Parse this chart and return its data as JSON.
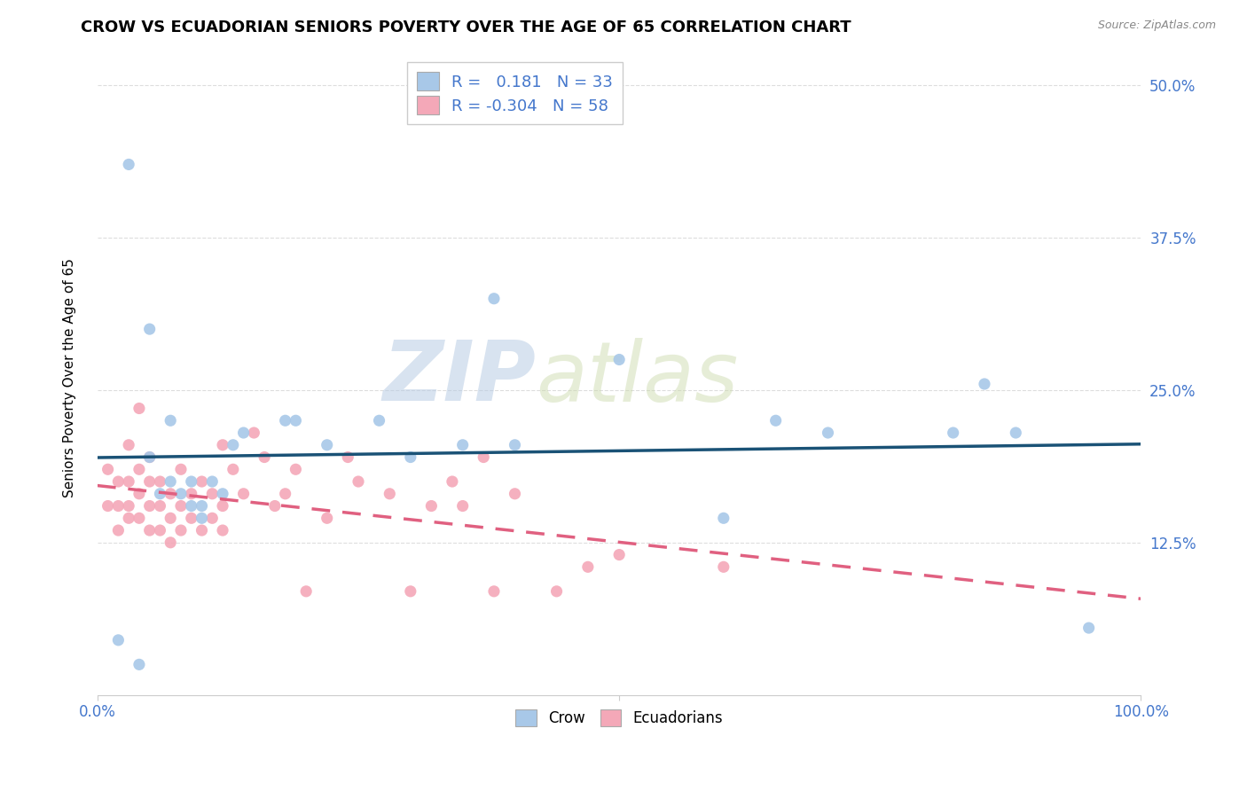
{
  "title": "CROW VS ECUADORIAN SENIORS POVERTY OVER THE AGE OF 65 CORRELATION CHART",
  "source": "Source: ZipAtlas.com",
  "ylabel": "Seniors Poverty Over the Age of 65",
  "xlabel": "",
  "xlim": [
    0.0,
    1.0
  ],
  "ylim": [
    0.0,
    0.52
  ],
  "xticks": [
    0.0,
    0.5,
    1.0
  ],
  "xticklabels": [
    "0.0%",
    "",
    "100.0%"
  ],
  "yticks": [
    0.125,
    0.25,
    0.375,
    0.5
  ],
  "yticklabels": [
    "12.5%",
    "25.0%",
    "37.5%",
    "50.0%"
  ],
  "crow_color": "#a8c8e8",
  "ecuadorian_color": "#f4a8b8",
  "crow_line_color": "#1a5276",
  "ecuadorian_line_color": "#e06080",
  "tick_color": "#4477cc",
  "crow_R": 0.181,
  "crow_N": 33,
  "ecuadorian_R": -0.304,
  "ecuadorian_N": 58,
  "watermark_zip": "ZIP",
  "watermark_atlas": "atlas",
  "crow_points": [
    [
      0.02,
      0.045
    ],
    [
      0.03,
      0.435
    ],
    [
      0.04,
      0.025
    ],
    [
      0.05,
      0.3
    ],
    [
      0.05,
      0.195
    ],
    [
      0.06,
      0.165
    ],
    [
      0.07,
      0.175
    ],
    [
      0.07,
      0.225
    ],
    [
      0.08,
      0.165
    ],
    [
      0.09,
      0.175
    ],
    [
      0.09,
      0.155
    ],
    [
      0.1,
      0.155
    ],
    [
      0.1,
      0.145
    ],
    [
      0.11,
      0.175
    ],
    [
      0.12,
      0.165
    ],
    [
      0.13,
      0.205
    ],
    [
      0.14,
      0.215
    ],
    [
      0.18,
      0.225
    ],
    [
      0.19,
      0.225
    ],
    [
      0.22,
      0.205
    ],
    [
      0.27,
      0.225
    ],
    [
      0.3,
      0.195
    ],
    [
      0.35,
      0.205
    ],
    [
      0.38,
      0.325
    ],
    [
      0.4,
      0.205
    ],
    [
      0.5,
      0.275
    ],
    [
      0.6,
      0.145
    ],
    [
      0.65,
      0.225
    ],
    [
      0.7,
      0.215
    ],
    [
      0.82,
      0.215
    ],
    [
      0.85,
      0.255
    ],
    [
      0.88,
      0.215
    ],
    [
      0.95,
      0.055
    ]
  ],
  "ecuadorian_points": [
    [
      0.01,
      0.185
    ],
    [
      0.01,
      0.155
    ],
    [
      0.02,
      0.175
    ],
    [
      0.02,
      0.155
    ],
    [
      0.02,
      0.135
    ],
    [
      0.03,
      0.205
    ],
    [
      0.03,
      0.175
    ],
    [
      0.03,
      0.155
    ],
    [
      0.03,
      0.145
    ],
    [
      0.04,
      0.235
    ],
    [
      0.04,
      0.185
    ],
    [
      0.04,
      0.165
    ],
    [
      0.04,
      0.145
    ],
    [
      0.05,
      0.195
    ],
    [
      0.05,
      0.175
    ],
    [
      0.05,
      0.155
    ],
    [
      0.05,
      0.135
    ],
    [
      0.06,
      0.175
    ],
    [
      0.06,
      0.155
    ],
    [
      0.06,
      0.135
    ],
    [
      0.07,
      0.165
    ],
    [
      0.07,
      0.145
    ],
    [
      0.07,
      0.125
    ],
    [
      0.08,
      0.185
    ],
    [
      0.08,
      0.155
    ],
    [
      0.08,
      0.135
    ],
    [
      0.09,
      0.165
    ],
    [
      0.09,
      0.145
    ],
    [
      0.1,
      0.175
    ],
    [
      0.1,
      0.135
    ],
    [
      0.11,
      0.165
    ],
    [
      0.11,
      0.145
    ],
    [
      0.12,
      0.205
    ],
    [
      0.12,
      0.155
    ],
    [
      0.12,
      0.135
    ],
    [
      0.13,
      0.185
    ],
    [
      0.14,
      0.165
    ],
    [
      0.15,
      0.215
    ],
    [
      0.16,
      0.195
    ],
    [
      0.17,
      0.155
    ],
    [
      0.18,
      0.165
    ],
    [
      0.19,
      0.185
    ],
    [
      0.2,
      0.085
    ],
    [
      0.22,
      0.145
    ],
    [
      0.24,
      0.195
    ],
    [
      0.25,
      0.175
    ],
    [
      0.28,
      0.165
    ],
    [
      0.3,
      0.085
    ],
    [
      0.32,
      0.155
    ],
    [
      0.34,
      0.175
    ],
    [
      0.35,
      0.155
    ],
    [
      0.37,
      0.195
    ],
    [
      0.38,
      0.085
    ],
    [
      0.4,
      0.165
    ],
    [
      0.44,
      0.085
    ],
    [
      0.47,
      0.105
    ],
    [
      0.5,
      0.115
    ],
    [
      0.6,
      0.105
    ]
  ],
  "background_color": "#ffffff",
  "grid_color": "#dddddd",
  "title_fontsize": 13,
  "axis_fontsize": 11,
  "tick_fontsize": 12,
  "marker_size": 90
}
